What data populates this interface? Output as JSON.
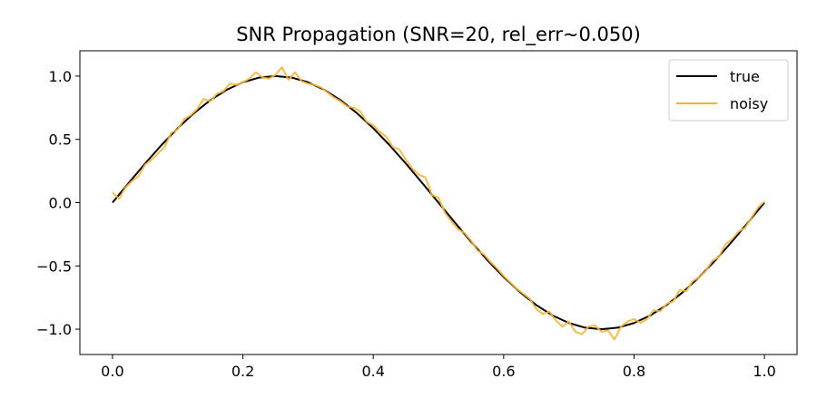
{
  "chart_data": {
    "type": "line",
    "title": "SNR Propagation (SNR=20, rel_err~0.050)",
    "xlabel": "",
    "ylabel": "",
    "xlim": [
      -0.05,
      1.05
    ],
    "ylim": [
      -1.2,
      1.2
    ],
    "xticks": [
      0.0,
      0.2,
      0.4,
      0.6,
      0.8,
      1.0
    ],
    "xtick_labels": [
      "0.0",
      "0.2",
      "0.4",
      "0.6",
      "0.8",
      "1.0"
    ],
    "yticks": [
      -1.0,
      -0.5,
      0.0,
      0.5,
      1.0
    ],
    "ytick_labels": [
      "−1.0",
      "−0.5",
      "0.0",
      "0.5",
      "1.0"
    ],
    "grid": false,
    "legend_position": "top-right",
    "series": [
      {
        "name": "true",
        "color": "#000000",
        "x": [
          0.0,
          0.025,
          0.05,
          0.075,
          0.1,
          0.125,
          0.15,
          0.175,
          0.2,
          0.225,
          0.25,
          0.275,
          0.3,
          0.325,
          0.35,
          0.375,
          0.4,
          0.425,
          0.45,
          0.475,
          0.5,
          0.525,
          0.55,
          0.575,
          0.6,
          0.625,
          0.65,
          0.675,
          0.7,
          0.725,
          0.75,
          0.775,
          0.8,
          0.825,
          0.85,
          0.875,
          0.9,
          0.925,
          0.95,
          0.975,
          1.0
        ],
        "y": [
          0.0,
          0.156,
          0.309,
          0.454,
          0.588,
          0.707,
          0.809,
          0.891,
          0.951,
          0.988,
          1.0,
          0.988,
          0.951,
          0.891,
          0.809,
          0.707,
          0.588,
          0.454,
          0.309,
          0.156,
          0.0,
          -0.156,
          -0.309,
          -0.454,
          -0.588,
          -0.707,
          -0.809,
          -0.891,
          -0.951,
          -0.988,
          -1.0,
          -0.988,
          -0.951,
          -0.891,
          -0.809,
          -0.707,
          -0.588,
          -0.454,
          -0.309,
          -0.156,
          0.0
        ]
      },
      {
        "name": "noisy",
        "color": "#F9B233",
        "x": [
          0.0,
          0.01,
          0.02,
          0.03,
          0.04,
          0.05,
          0.06,
          0.07,
          0.08,
          0.09,
          0.1,
          0.11,
          0.12,
          0.13,
          0.14,
          0.15,
          0.16,
          0.17,
          0.18,
          0.19,
          0.2,
          0.21,
          0.22,
          0.23,
          0.24,
          0.25,
          0.26,
          0.27,
          0.28,
          0.29,
          0.3,
          0.31,
          0.32,
          0.33,
          0.34,
          0.35,
          0.36,
          0.37,
          0.38,
          0.39,
          0.4,
          0.41,
          0.42,
          0.43,
          0.44,
          0.45,
          0.46,
          0.47,
          0.48,
          0.49,
          0.5,
          0.51,
          0.52,
          0.53,
          0.54,
          0.55,
          0.56,
          0.57,
          0.58,
          0.59,
          0.6,
          0.61,
          0.62,
          0.63,
          0.64,
          0.65,
          0.66,
          0.67,
          0.68,
          0.69,
          0.7,
          0.71,
          0.72,
          0.73,
          0.74,
          0.75,
          0.76,
          0.77,
          0.78,
          0.79,
          0.8,
          0.81,
          0.82,
          0.83,
          0.84,
          0.85,
          0.86,
          0.87,
          0.88,
          0.89,
          0.9,
          0.91,
          0.92,
          0.93,
          0.94,
          0.95,
          0.96,
          0.97,
          0.98,
          0.99,
          1.0
        ],
        "y": [
          0.08,
          0.03,
          0.12,
          0.17,
          0.21,
          0.3,
          0.34,
          0.39,
          0.44,
          0.55,
          0.58,
          0.66,
          0.69,
          0.74,
          0.82,
          0.8,
          0.86,
          0.88,
          0.94,
          0.93,
          0.95,
          0.98,
          1.03,
          0.99,
          0.98,
          1.01,
          1.07,
          0.97,
          1.03,
          0.96,
          0.94,
          0.93,
          0.91,
          0.87,
          0.83,
          0.8,
          0.76,
          0.75,
          0.72,
          0.64,
          0.61,
          0.56,
          0.52,
          0.44,
          0.42,
          0.34,
          0.27,
          0.22,
          0.2,
          0.06,
          0.04,
          -0.08,
          -0.15,
          -0.21,
          -0.24,
          -0.3,
          -0.38,
          -0.41,
          -0.47,
          -0.52,
          -0.58,
          -0.63,
          -0.68,
          -0.72,
          -0.76,
          -0.84,
          -0.88,
          -0.86,
          -0.93,
          -0.98,
          -0.94,
          -1.02,
          -1.04,
          -0.98,
          -0.97,
          -1.02,
          -1.01,
          -1.08,
          -0.98,
          -0.94,
          -0.92,
          -0.95,
          -0.92,
          -0.85,
          -0.86,
          -0.8,
          -0.78,
          -0.69,
          -0.7,
          -0.62,
          -0.59,
          -0.54,
          -0.46,
          -0.43,
          -0.33,
          -0.29,
          -0.23,
          -0.2,
          -0.12,
          -0.04,
          0.01
        ]
      }
    ]
  }
}
